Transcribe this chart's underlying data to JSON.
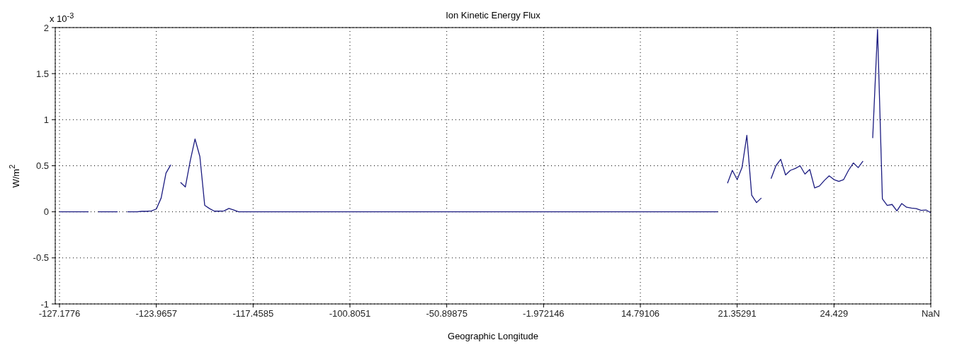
{
  "chart_data": {
    "type": "line",
    "title": "Ion Kinetic Energy Flux",
    "xlabel": "Geographic Longitude",
    "ylabel": "W/m$^{2}$",
    "annotations": [
      "x 10$^{-3}$"
    ],
    "categories": [
      "-127.1776",
      null,
      null,
      null,
      null,
      null,
      null,
      null,
      null,
      null,
      null,
      null,
      null,
      null,
      null,
      null,
      null,
      null,
      null,
      null,
      "-123.9657",
      null,
      null,
      null,
      null,
      null,
      null,
      null,
      null,
      null,
      null,
      null,
      null,
      null,
      null,
      null,
      null,
      null,
      null,
      null,
      "-117.4585",
      null,
      null,
      null,
      null,
      null,
      null,
      null,
      null,
      null,
      null,
      null,
      null,
      null,
      null,
      null,
      null,
      null,
      null,
      null,
      "-100.8051",
      null,
      null,
      null,
      null,
      null,
      null,
      null,
      null,
      null,
      null,
      null,
      null,
      null,
      null,
      null,
      null,
      null,
      null,
      null,
      "-50.89875",
      null,
      null,
      null,
      null,
      null,
      null,
      null,
      null,
      null,
      null,
      null,
      null,
      null,
      null,
      null,
      null,
      null,
      null,
      null,
      "-1.972146",
      null,
      null,
      null,
      null,
      null,
      null,
      null,
      null,
      null,
      null,
      null,
      null,
      null,
      null,
      null,
      null,
      null,
      null,
      null,
      "14.79106",
      null,
      null,
      null,
      null,
      null,
      null,
      null,
      null,
      null,
      null,
      null,
      null,
      null,
      null,
      null,
      null,
      null,
      null,
      null,
      "21.35291",
      null,
      null,
      null,
      null,
      null,
      null,
      null,
      null,
      null,
      null,
      null,
      null,
      null,
      null,
      null,
      null,
      null,
      null,
      null,
      "24.429",
      null,
      null,
      null,
      null,
      null,
      null,
      null,
      null,
      null,
      null,
      null,
      null,
      null,
      null,
      null,
      null,
      null,
      null,
      null,
      "NaN"
    ],
    "ylim": [
      -1,
      2
    ],
    "yticks": [
      -1,
      -0.5,
      0,
      0.5,
      1,
      1.5,
      2
    ],
    "grid": true,
    "line_style": "solid",
    "marker": "none",
    "series": [
      {
        "color": "#1c1c80",
        "values": [
          0,
          0,
          0,
          0,
          0,
          0,
          0,
          null,
          0,
          0,
          0,
          0,
          0,
          null,
          0,
          0,
          0,
          0.005,
          0.005,
          0.01,
          0.03,
          0.15,
          0.42,
          0.51,
          null,
          0.32,
          0.27,
          0.55,
          0.79,
          0.6,
          0.07,
          0.035,
          0.007,
          0.007,
          0.01,
          0.037,
          0.02,
          0,
          0,
          0,
          0,
          0,
          0,
          0,
          0,
          0,
          0,
          0,
          0,
          0,
          0,
          0,
          0,
          0,
          0,
          0,
          0,
          0,
          0,
          0,
          0,
          0,
          0,
          0,
          0,
          0,
          0,
          0,
          0,
          0,
          0,
          0,
          0,
          0,
          0,
          0,
          0,
          0,
          0,
          0,
          0,
          0,
          0,
          0,
          0,
          0,
          0,
          0,
          0,
          0,
          0,
          0,
          0,
          0,
          0,
          0,
          0,
          0,
          0,
          0,
          0,
          0,
          0,
          0,
          0,
          0,
          0,
          0,
          0,
          0,
          0,
          0,
          0,
          0,
          0,
          0,
          0,
          0,
          0,
          0,
          0,
          0,
          0,
          0,
          0,
          0,
          0,
          0,
          0,
          0,
          0,
          0,
          0,
          0,
          0,
          0,
          0,
          null,
          0.31,
          0.45,
          0.35,
          0.48,
          0.83,
          0.18,
          0.1,
          0.15,
          null,
          0.36,
          0.5,
          0.57,
          0.4,
          0.45,
          0.47,
          0.5,
          0.41,
          0.46,
          0.26,
          0.28,
          0.34,
          0.39,
          0.35,
          0.33,
          0.35,
          0.45,
          0.53,
          0.48,
          0.55,
          null,
          0.8,
          1.98,
          0.14,
          0.07,
          0.08,
          0.01,
          0.09,
          0.05,
          0.04,
          0.035,
          0.015,
          0.02,
          -0.01
        ]
      }
    ]
  }
}
